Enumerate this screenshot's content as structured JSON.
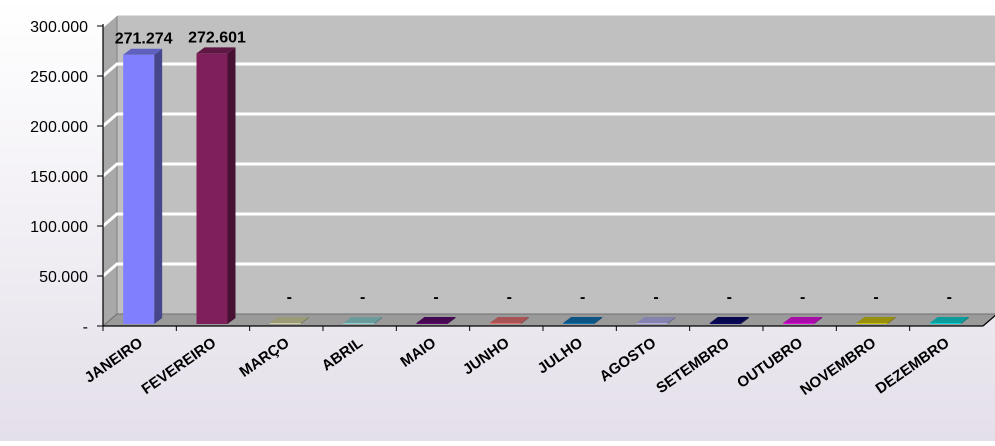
{
  "chart_data": {
    "type": "bar",
    "title": "",
    "xlabel": "",
    "ylabel": "",
    "ylim": [
      0,
      300000
    ],
    "y_ticks": [
      0,
      50000,
      100000,
      150000,
      200000,
      250000,
      300000
    ],
    "y_tick_labels": [
      "-",
      "50.000",
      "100.000",
      "150.000",
      "200.000",
      "250.000",
      "300.000"
    ],
    "grid": true,
    "legend": "none",
    "categories": [
      "JANEIRO",
      "FEVEREIRO",
      "MARÇO",
      "ABRIL",
      "MAIO",
      "JUNHO",
      "JULHO",
      "AGOSTO",
      "SETEMBRO",
      "OUTUBRO",
      "NOVEMBRO",
      "DEZEMBRO"
    ],
    "values": [
      271274,
      272601,
      0,
      0,
      0,
      0,
      0,
      0,
      0,
      0,
      0,
      0
    ],
    "data_labels": [
      "271.274",
      "272.601",
      "-",
      "-",
      "-",
      "-",
      "-",
      "-",
      "-",
      "-",
      "-",
      "-"
    ],
    "bar_colors": [
      "#8080ff",
      "#7f1f5b",
      "#cfcfa0",
      "#8fcfcf",
      "#5c0c6c",
      "#e07070",
      "#1070b0",
      "#b0b0e8",
      "#0a0a6a",
      "#e010e0",
      "#c8c010",
      "#10d0d0"
    ],
    "plot_background": "#c0c0c0",
    "gridline_color": "#ffffff"
  }
}
